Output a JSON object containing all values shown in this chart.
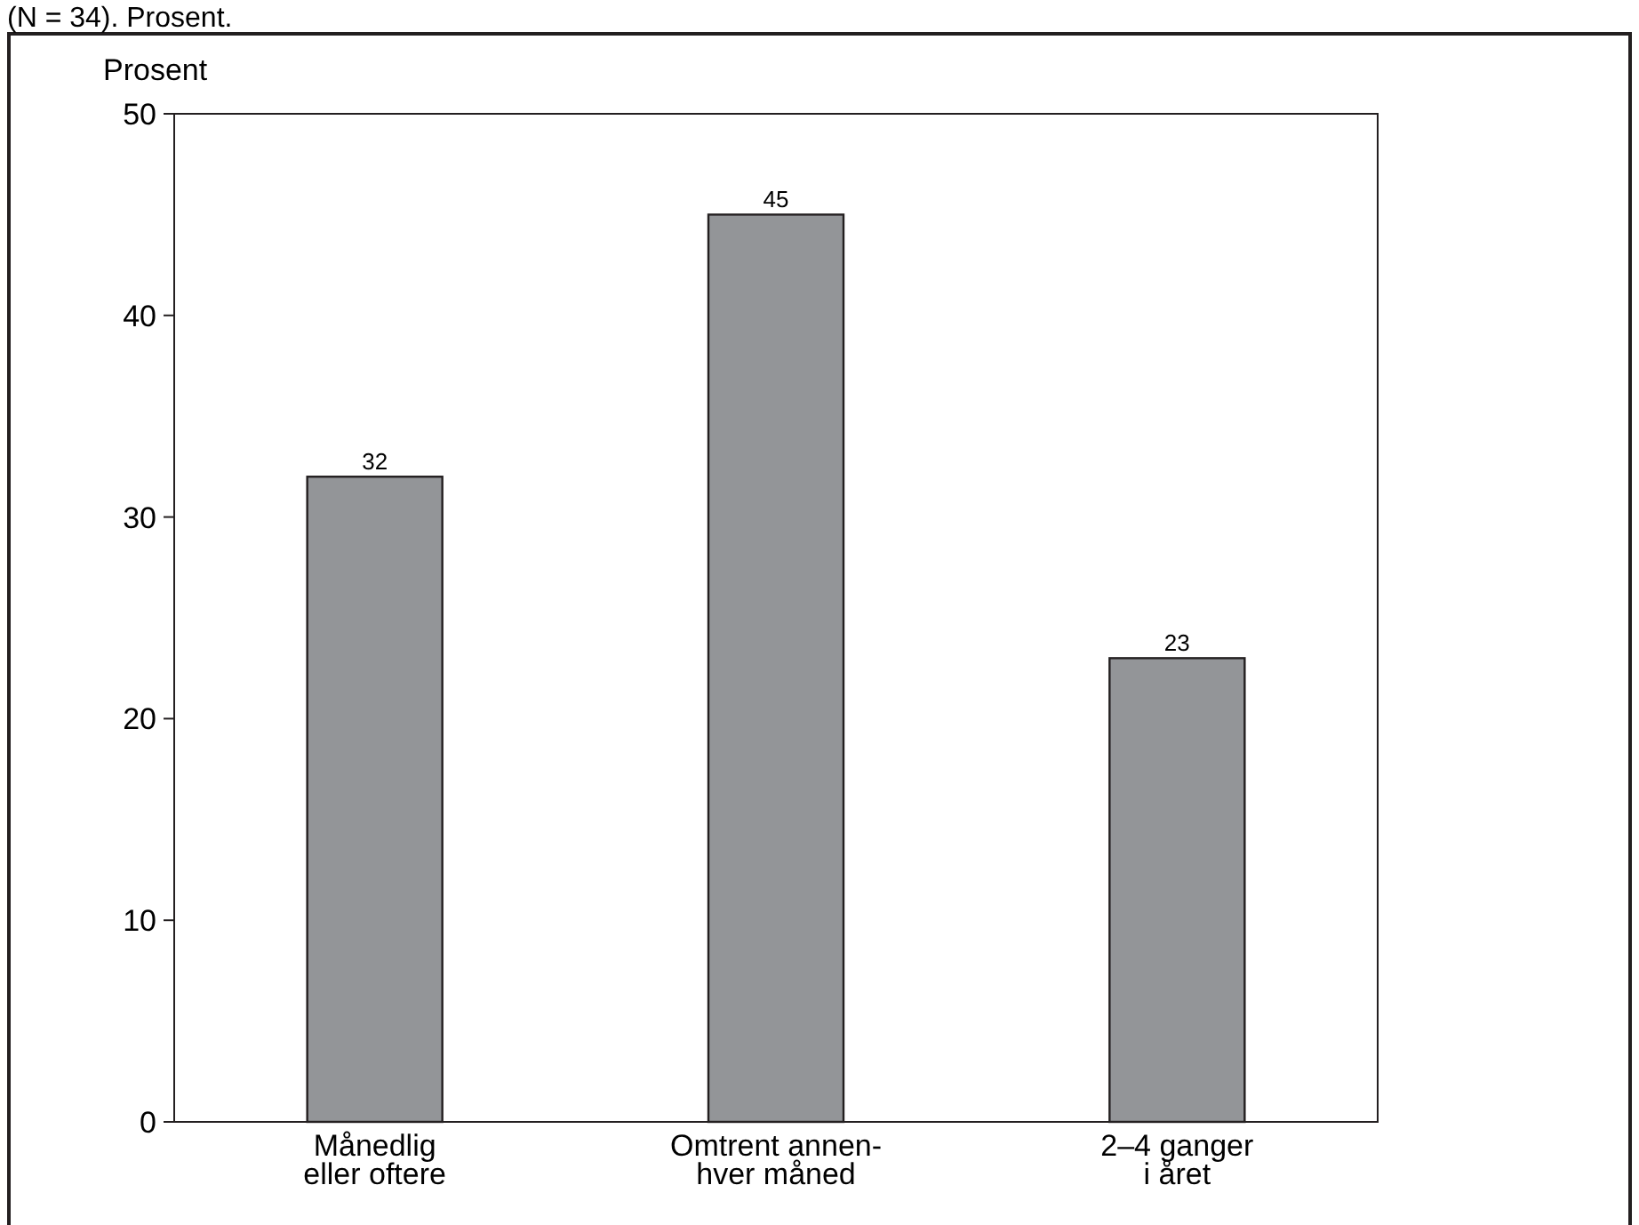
{
  "chart_data": {
    "type": "bar",
    "title": "(N = 34). Prosent.",
    "ylabel": "Prosent",
    "categories": [
      "Månedlig\neller oftere",
      "Omtrent annen-\nhver måned",
      "2–4 ganger\ni året"
    ],
    "values": [
      32,
      45,
      23
    ],
    "color": "#939598",
    "ylim": [
      0,
      50
    ],
    "yticks": [
      0,
      10,
      20,
      30,
      40,
      50
    ],
    "data_labels": true,
    "grid": false
  }
}
